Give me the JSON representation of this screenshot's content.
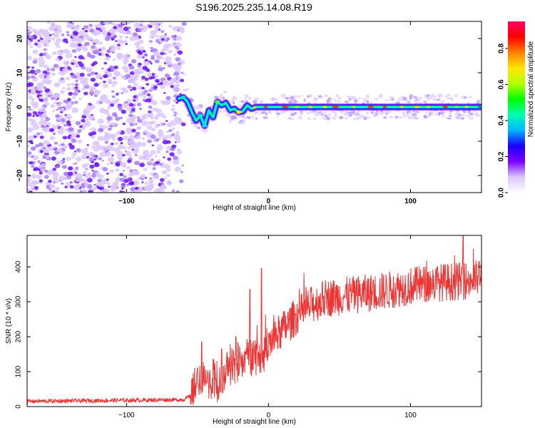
{
  "title": "S196.2025.235.14.08.R19",
  "chart_data": [
    {
      "type": "heatmap",
      "xlabel": "Height of straight line (km)",
      "ylabel": "Frequency (Hz)",
      "xlim": [
        -170,
        150
      ],
      "ylim": [
        -25,
        25
      ],
      "xticks": [
        -100,
        0,
        100
      ],
      "yticks": [
        -20,
        -10,
        0,
        10,
        20
      ],
      "noise_region_x": [
        -170,
        -63
      ],
      "ridge": {
        "x": [
          -63,
          -60,
          -57,
          -54,
          -51,
          -48,
          -45,
          -42,
          -39,
          -36,
          -33,
          -30,
          -27,
          -24,
          -21,
          -18,
          -15,
          -12,
          -9,
          -6,
          -3,
          0,
          50,
          100,
          150
        ],
        "freq": [
          2.5,
          2.8,
          1.5,
          -1.5,
          -4.0,
          -2.5,
          -5.5,
          -1.0,
          -3.0,
          1.5,
          0.5,
          1.2,
          -1.0,
          -0.5,
          -1.5,
          -1.3,
          0.5,
          -0.5,
          0.0,
          0.0,
          0.0,
          0.0,
          0.0,
          0.0,
          0.0
        ]
      },
      "colorbar": {
        "label": "Normalized spectral amplitude",
        "ticks": [
          "0.0",
          "0.2",
          "0.4",
          "0.6",
          "0.8"
        ],
        "range": [
          0,
          0.95
        ],
        "colors": [
          "#ffffff",
          "#d9c6ff",
          "#7a00ff",
          "#1a00ff",
          "#00b4ff",
          "#00ffb0",
          "#00ff00",
          "#b4ff00",
          "#ffe600",
          "#ff8000",
          "#ff0000",
          "#ff0066"
        ]
      }
    },
    {
      "type": "line",
      "xlabel": "Height of straight line (km)",
      "ylabel": "SNR (10 * v/v)",
      "xlim": [
        -170,
        150
      ],
      "ylim": [
        0,
        490
      ],
      "xticks": [
        -100,
        0,
        100
      ],
      "yticks": [
        0,
        100,
        200,
        300,
        400
      ],
      "color": "#ee3333",
      "trend": {
        "x": [
          -170,
          -100,
          -60,
          -55,
          -50,
          -45,
          -40,
          -35,
          -30,
          -25,
          -20,
          -15,
          -10,
          -5,
          0,
          10,
          20,
          30,
          40,
          60,
          80,
          100,
          120,
          140,
          150
        ],
        "y": [
          15,
          18,
          20,
          30,
          75,
          80,
          60,
          60,
          100,
          120,
          120,
          140,
          150,
          130,
          180,
          220,
          260,
          290,
          310,
          320,
          330,
          345,
          355,
          360,
          370
        ]
      },
      "spikes": [
        {
          "x": -47,
          "y": 185
        },
        {
          "x": -33,
          "y": 165
        },
        {
          "x": -23,
          "y": 200
        },
        {
          "x": -13,
          "y": 335
        },
        {
          "x": -5,
          "y": 395
        },
        {
          "x": 137,
          "y": 490
        }
      ]
    }
  ]
}
